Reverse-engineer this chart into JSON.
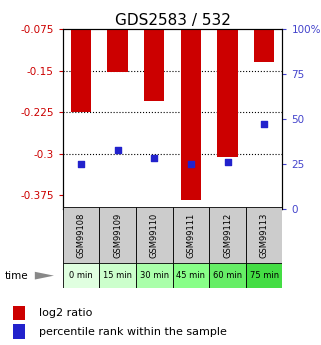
{
  "title": "GDS2583 / 532",
  "samples": [
    "GSM99108",
    "GSM99109",
    "GSM99110",
    "GSM99111",
    "GSM99112",
    "GSM99113"
  ],
  "time_labels": [
    "0 min",
    "15 min",
    "30 min",
    "45 min",
    "60 min",
    "75 min"
  ],
  "log2_ratio": [
    -0.225,
    -0.152,
    -0.205,
    -0.385,
    -0.307,
    -0.135
  ],
  "percentile_rank": [
    25,
    33,
    28,
    25,
    26,
    47
  ],
  "ylim_left": [
    -0.4,
    -0.075
  ],
  "ylim_right": [
    0,
    100
  ],
  "yticks_left": [
    -0.375,
    -0.3,
    -0.225,
    -0.15,
    -0.075
  ],
  "yticks_right": [
    0,
    25,
    50,
    75,
    100
  ],
  "yticks_right_labels": [
    "0",
    "25",
    "50",
    "75",
    "100%"
  ],
  "hline_values": [
    -0.15,
    -0.225,
    -0.3
  ],
  "bar_color": "#cc0000",
  "blue_color": "#2222cc",
  "left_tick_color": "#cc0000",
  "right_tick_color": "#4444cc",
  "time_row_colors": [
    "#e0ffe0",
    "#ccffcc",
    "#aaffaa",
    "#88ff88",
    "#66ee66",
    "#44dd44"
  ],
  "sample_row_color": "#cccccc",
  "title_fontsize": 11,
  "tick_fontsize": 7.5,
  "legend_fontsize": 8,
  "bar_width": 0.55
}
